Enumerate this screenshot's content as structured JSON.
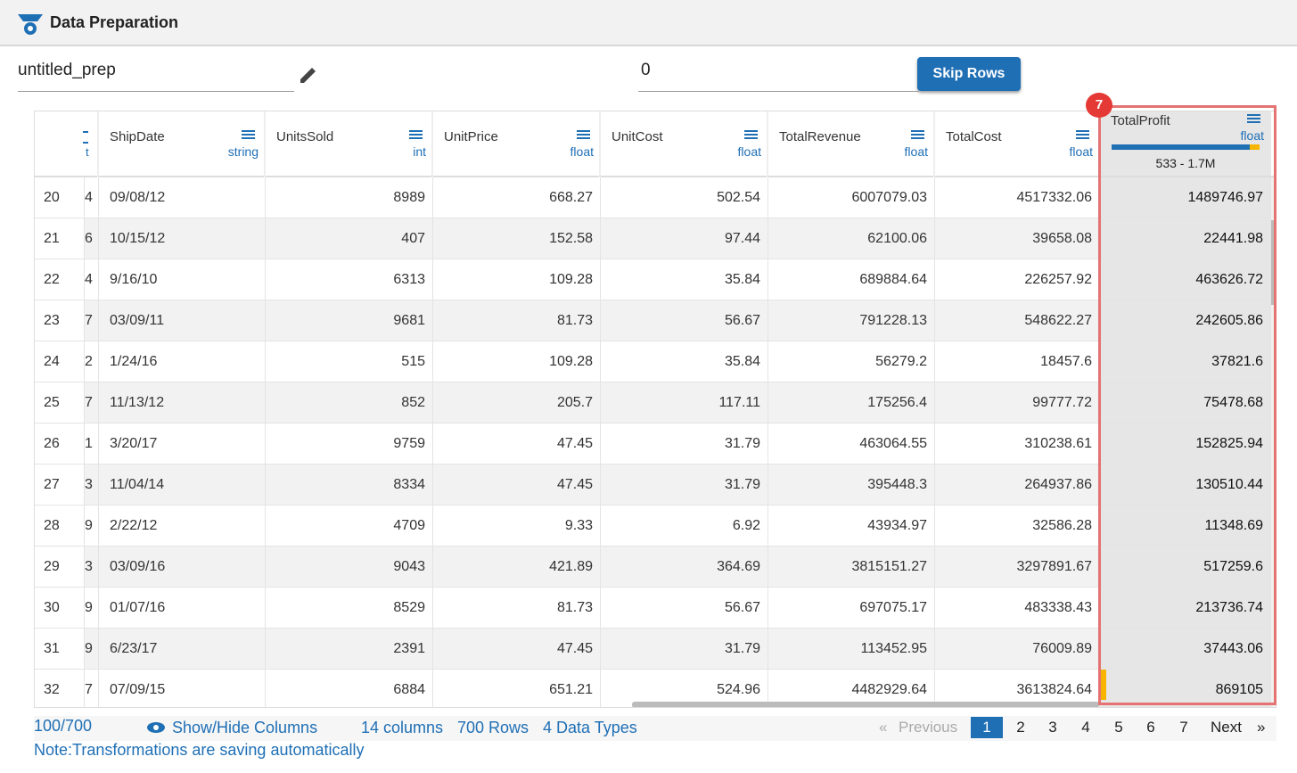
{
  "header": {
    "title": "Data Preparation"
  },
  "form": {
    "name": "untitled_prep",
    "skip_value": "0",
    "skip_button": "Skip Rows"
  },
  "table": {
    "clipped_column": {
      "type": "t"
    },
    "columns": [
      {
        "name": "ShipDate",
        "type": "string"
      },
      {
        "name": "UnitsSold",
        "type": "int"
      },
      {
        "name": "UnitPrice",
        "type": "float"
      },
      {
        "name": "UnitCost",
        "type": "float"
      },
      {
        "name": "TotalRevenue",
        "type": "float"
      },
      {
        "name": "TotalCost",
        "type": "float"
      },
      {
        "name": "TotalProfit",
        "type": "float",
        "range": "533 - 1.7M",
        "badge": "7"
      }
    ],
    "rows": [
      [
        "20",
        "4",
        "09/08/12",
        "8989",
        "668.27",
        "502.54",
        "6007079.03",
        "4517332.06",
        "1489746.97"
      ],
      [
        "21",
        "6",
        "10/15/12",
        "407",
        "152.58",
        "97.44",
        "62100.06",
        "39658.08",
        "22441.98"
      ],
      [
        "22",
        "4",
        "9/16/10",
        "6313",
        "109.28",
        "35.84",
        "689884.64",
        "226257.92",
        "463626.72"
      ],
      [
        "23",
        "7",
        "03/09/11",
        "9681",
        "81.73",
        "56.67",
        "791228.13",
        "548622.27",
        "242605.86"
      ],
      [
        "24",
        "2",
        "1/24/16",
        "515",
        "109.28",
        "35.84",
        "56279.2",
        "18457.6",
        "37821.6"
      ],
      [
        "25",
        "7",
        "11/13/12",
        "852",
        "205.7",
        "117.11",
        "175256.4",
        "99777.72",
        "75478.68"
      ],
      [
        "26",
        "1",
        "3/20/17",
        "9759",
        "47.45",
        "31.79",
        "463064.55",
        "310238.61",
        "152825.94"
      ],
      [
        "27",
        "3",
        "11/04/14",
        "8334",
        "47.45",
        "31.79",
        "395448.3",
        "264937.86",
        "130510.44"
      ],
      [
        "28",
        "9",
        "2/22/12",
        "4709",
        "9.33",
        "6.92",
        "43934.97",
        "32586.28",
        "11348.69"
      ],
      [
        "29",
        "3",
        "03/09/16",
        "9043",
        "421.89",
        "364.69",
        "3815151.27",
        "3297891.67",
        "517259.6"
      ],
      [
        "30",
        "9",
        "01/07/16",
        "8529",
        "81.73",
        "56.67",
        "697075.17",
        "483338.43",
        "213736.74"
      ],
      [
        "31",
        "9",
        "6/23/17",
        "2391",
        "47.45",
        "31.79",
        "113452.95",
        "76009.89",
        "37443.06"
      ],
      [
        "32",
        "7",
        "07/09/15",
        "6884",
        "651.21",
        "524.96",
        "4482929.64",
        "3613824.64",
        "869105"
      ]
    ]
  },
  "footer": {
    "count": "100/700",
    "show_hide": "Show/Hide Columns",
    "columns": "14 columns",
    "rows": "700 Rows",
    "types": "4 Data Types",
    "pagination": {
      "first": "«",
      "previous": "Previous",
      "pages": [
        "1",
        "2",
        "3",
        "4",
        "5",
        "6",
        "7"
      ],
      "next": "Next",
      "last": "»"
    },
    "note": "Note:Transformations are saving automatically"
  }
}
